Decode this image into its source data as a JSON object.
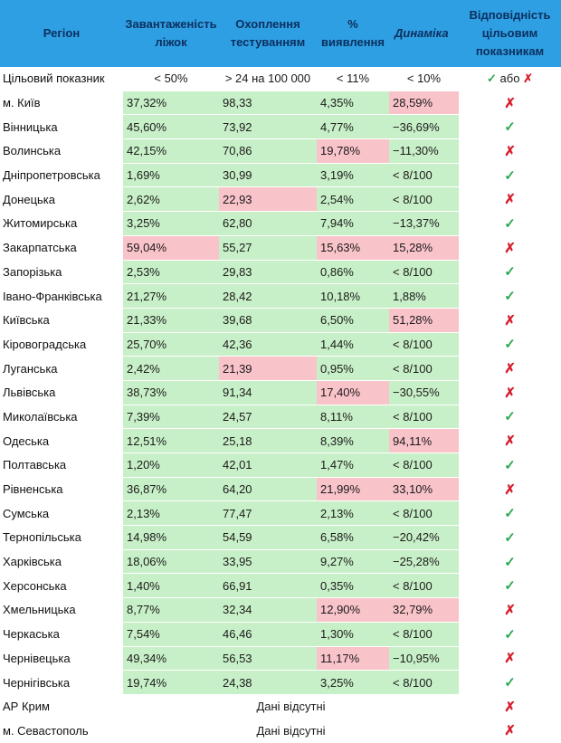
{
  "colors": {
    "header_bg": "#2f9fe3",
    "header_text": "#0b2f5e",
    "good": "#c8f0c8",
    "bad": "#f9c3ca",
    "check": "#2fa84f",
    "cross": "#d6202f"
  },
  "header": {
    "region": "Регіон",
    "bed_load": "Завантаженість ліжок",
    "testing": "Охоплення тестуванням",
    "detection": "% виявлення",
    "dynamics": "Динаміка",
    "compliance": "Відповідність цільовим показникам"
  },
  "target": {
    "label": "Цільовий показник",
    "bed_load": "< 50%",
    "testing": "> 24 на 100 000",
    "detection": "< 11%",
    "dynamics": "< 10%",
    "check_glyph": "✓",
    "or_text": "або",
    "cross_glyph": "✗"
  },
  "rows": [
    {
      "name": "м. Київ",
      "bed": "37,32%",
      "bed_ok": true,
      "test": "98,33",
      "test_ok": true,
      "det": "4,35%",
      "det_ok": true,
      "dyn": "28,59%",
      "dyn_ok": false,
      "pass": false
    },
    {
      "name": "Вінницька",
      "bed": "45,60%",
      "bed_ok": true,
      "test": "73,92",
      "test_ok": true,
      "det": "4,77%",
      "det_ok": true,
      "dyn": "−36,69%",
      "dyn_ok": true,
      "pass": true
    },
    {
      "name": "Волинська",
      "bed": "42,15%",
      "bed_ok": true,
      "test": "70,86",
      "test_ok": true,
      "det": "19,78%",
      "det_ok": false,
      "dyn": "−11,30%",
      "dyn_ok": true,
      "pass": false
    },
    {
      "name": "Дніпропетровська",
      "bed": "1,69%",
      "bed_ok": true,
      "test": "30,99",
      "test_ok": true,
      "det": "3,19%",
      "det_ok": true,
      "dyn": "< 8/100",
      "dyn_ok": true,
      "pass": true
    },
    {
      "name": "Донецька",
      "bed": "2,62%",
      "bed_ok": true,
      "test": "22,93",
      "test_ok": false,
      "det": "2,54%",
      "det_ok": true,
      "dyn": "< 8/100",
      "dyn_ok": true,
      "pass": false
    },
    {
      "name": "Житомирська",
      "bed": "3,25%",
      "bed_ok": true,
      "test": "62,80",
      "test_ok": true,
      "det": "7,94%",
      "det_ok": true,
      "dyn": "−13,37%",
      "dyn_ok": true,
      "pass": true
    },
    {
      "name": "Закарпатська",
      "bed": "59,04%",
      "bed_ok": false,
      "test": "55,27",
      "test_ok": true,
      "det": "15,63%",
      "det_ok": false,
      "dyn": "15,28%",
      "dyn_ok": false,
      "pass": false
    },
    {
      "name": "Запорізька",
      "bed": "2,53%",
      "bed_ok": true,
      "test": "29,83",
      "test_ok": true,
      "det": "0,86%",
      "det_ok": true,
      "dyn": "< 8/100",
      "dyn_ok": true,
      "pass": true
    },
    {
      "name": "Івано-Франківська",
      "bed": "21,27%",
      "bed_ok": true,
      "test": "28,42",
      "test_ok": true,
      "det": "10,18%",
      "det_ok": true,
      "dyn": "1,88%",
      "dyn_ok": true,
      "pass": true
    },
    {
      "name": "Київська",
      "bed": "21,33%",
      "bed_ok": true,
      "test": "39,68",
      "test_ok": true,
      "det": "6,50%",
      "det_ok": true,
      "dyn": "51,28%",
      "dyn_ok": false,
      "pass": false
    },
    {
      "name": "Кіровоградська",
      "bed": "25,70%",
      "bed_ok": true,
      "test": "42,36",
      "test_ok": true,
      "det": "1,44%",
      "det_ok": true,
      "dyn": "< 8/100",
      "dyn_ok": true,
      "pass": true
    },
    {
      "name": "Луганська",
      "bed": "2,42%",
      "bed_ok": true,
      "test": "21,39",
      "test_ok": false,
      "det": "0,95%",
      "det_ok": true,
      "dyn": "< 8/100",
      "dyn_ok": true,
      "pass": false
    },
    {
      "name": "Львівська",
      "bed": "38,73%",
      "bed_ok": true,
      "test": "91,34",
      "test_ok": true,
      "det": "17,40%",
      "det_ok": false,
      "dyn": "−30,55%",
      "dyn_ok": true,
      "pass": false
    },
    {
      "name": "Миколаївська",
      "bed": "7,39%",
      "bed_ok": true,
      "test": "24,57",
      "test_ok": true,
      "det": "8,11%",
      "det_ok": true,
      "dyn": "< 8/100",
      "dyn_ok": true,
      "pass": true
    },
    {
      "name": "Одеська",
      "bed": "12,51%",
      "bed_ok": true,
      "test": "25,18",
      "test_ok": true,
      "det": "8,39%",
      "det_ok": true,
      "dyn": "94,11%",
      "dyn_ok": false,
      "pass": false
    },
    {
      "name": "Полтавська",
      "bed": "1,20%",
      "bed_ok": true,
      "test": "42,01",
      "test_ok": true,
      "det": "1,47%",
      "det_ok": true,
      "dyn": "< 8/100",
      "dyn_ok": true,
      "pass": true
    },
    {
      "name": "Рівненська",
      "bed": "36,87%",
      "bed_ok": true,
      "test": "64,20",
      "test_ok": true,
      "det": "21,99%",
      "det_ok": false,
      "dyn": "33,10%",
      "dyn_ok": false,
      "pass": false
    },
    {
      "name": "Сумська",
      "bed": "2,13%",
      "bed_ok": true,
      "test": "77,47",
      "test_ok": true,
      "det": "2,13%",
      "det_ok": true,
      "dyn": "< 8/100",
      "dyn_ok": true,
      "pass": true
    },
    {
      "name": "Тернопільська",
      "bed": "14,98%",
      "bed_ok": true,
      "test": "54,59",
      "test_ok": true,
      "det": "6,58%",
      "det_ok": true,
      "dyn": "−20,42%",
      "dyn_ok": true,
      "pass": true
    },
    {
      "name": "Харківська",
      "bed": "18,06%",
      "bed_ok": true,
      "test": "33,95",
      "test_ok": true,
      "det": "9,27%",
      "det_ok": true,
      "dyn": "−25,28%",
      "dyn_ok": true,
      "pass": true
    },
    {
      "name": "Херсонська",
      "bed": "1,40%",
      "bed_ok": true,
      "test": "66,91",
      "test_ok": true,
      "det": "0,35%",
      "det_ok": true,
      "dyn": "< 8/100",
      "dyn_ok": true,
      "pass": true
    },
    {
      "name": "Хмельницька",
      "bed": "8,77%",
      "bed_ok": true,
      "test": "32,34",
      "test_ok": true,
      "det": "12,90%",
      "det_ok": false,
      "dyn": "32,79%",
      "dyn_ok": false,
      "pass": false
    },
    {
      "name": "Черкаська",
      "bed": "7,54%",
      "bed_ok": true,
      "test": "46,46",
      "test_ok": true,
      "det": "1,30%",
      "det_ok": true,
      "dyn": "< 8/100",
      "dyn_ok": true,
      "pass": true
    },
    {
      "name": "Чернівецька",
      "bed": "49,34%",
      "bed_ok": true,
      "test": "56,53",
      "test_ok": true,
      "det": "11,17%",
      "det_ok": false,
      "dyn": "−10,95%",
      "dyn_ok": true,
      "pass": false
    },
    {
      "name": "Чернігівська",
      "bed": "19,74%",
      "bed_ok": true,
      "test": "24,38",
      "test_ok": true,
      "det": "3,25%",
      "det_ok": true,
      "dyn": "< 8/100",
      "dyn_ok": true,
      "pass": true
    }
  ],
  "missing_rows": [
    {
      "name": "АР Крим",
      "note": "Дані відсутні",
      "pass": false
    },
    {
      "name": "м. Севастополь",
      "note": "Дані відсутні",
      "pass": false
    }
  ]
}
